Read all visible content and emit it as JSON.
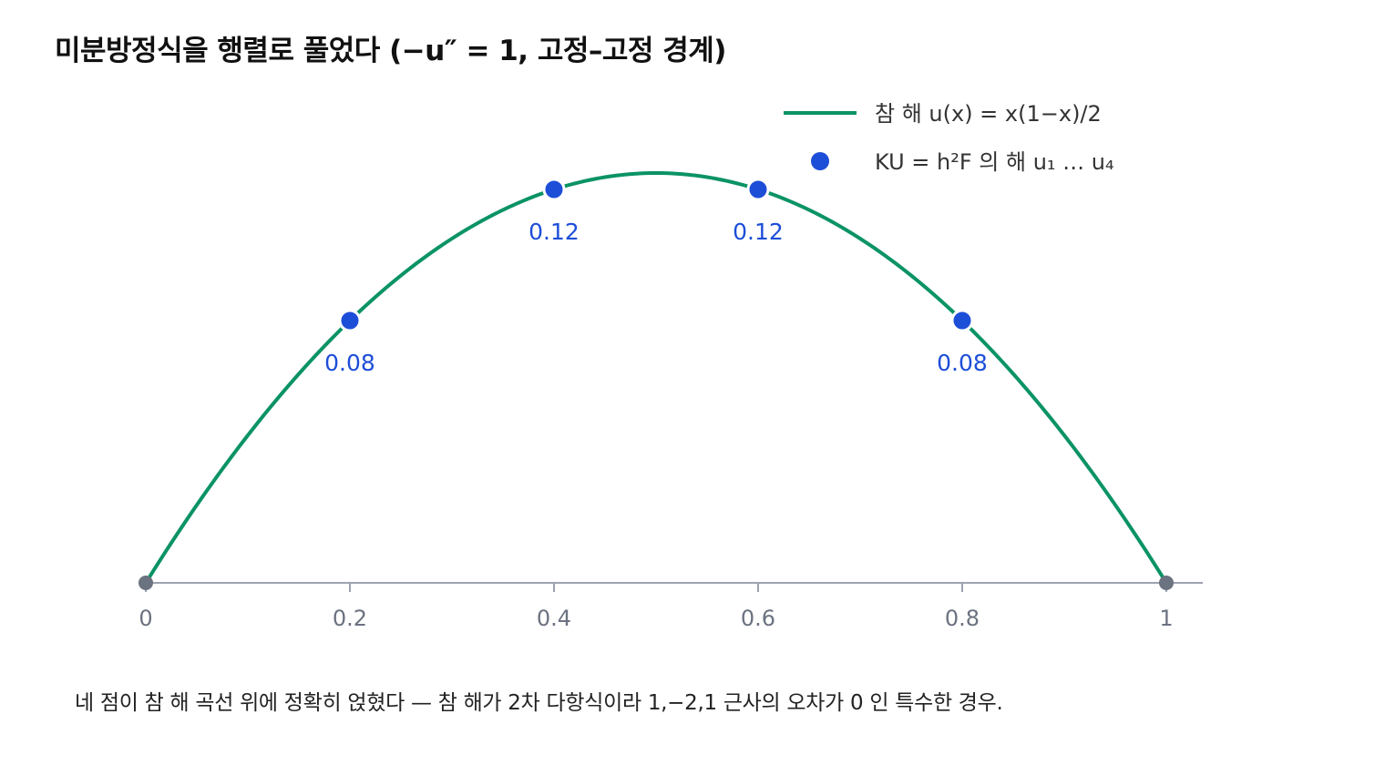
{
  "title": "미분방정식을 행렬로 풀었다 (−u″ = 1, 고정–고정 경계)",
  "caption": "네 점이 참 해 곡선 위에 정확히 얹혔다 — 참 해가 2차 다항식이라 1,−2,1 근사의 오차가 0 인 특수한 경우.",
  "colors": {
    "curve": "#0b9366",
    "points": "#1d4ed8",
    "boundary": "#6b7280",
    "axis": "#9ca3af"
  },
  "chart_data": {
    "type": "line",
    "xlim": [
      0,
      1
    ],
    "ylim": [
      0,
      0.125
    ],
    "grid": false,
    "legend_position": "top-right",
    "x_ticks": [
      {
        "value": 0,
        "label": "0"
      },
      {
        "value": 0.2,
        "label": "0.2"
      },
      {
        "value": 0.4,
        "label": "0.4"
      },
      {
        "value": 0.6,
        "label": "0.6"
      },
      {
        "value": 0.8,
        "label": "0.8"
      },
      {
        "value": 1,
        "label": "1"
      }
    ],
    "series": [
      {
        "name": "참 해 u(x) = x(1−x)/2",
        "kind": "line",
        "function": "x(1-x)/2"
      },
      {
        "name": "KU = h²F 의 해 u₁ … u₄",
        "kind": "scatter",
        "points": [
          {
            "x": 0.2,
            "y": 0.08,
            "label": "0.08"
          },
          {
            "x": 0.4,
            "y": 0.12,
            "label": "0.12"
          },
          {
            "x": 0.6,
            "y": 0.12,
            "label": "0.12"
          },
          {
            "x": 0.8,
            "y": 0.08,
            "label": "0.08"
          }
        ]
      }
    ],
    "boundary_points": [
      {
        "x": 0,
        "y": 0
      },
      {
        "x": 1,
        "y": 0
      }
    ]
  }
}
